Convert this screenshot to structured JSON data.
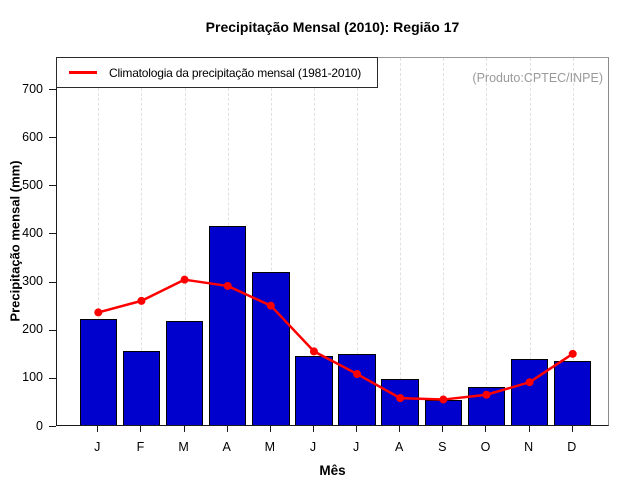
{
  "title": "Precipitação Mensal (2010): Região 17",
  "watermark": {
    "text": "(Produto:CPTEC/INPE)",
    "color": "#9a9a9a"
  },
  "legend": {
    "label": "Climatologia da precipitação mensal (1981-2010)",
    "line_color": "#ff0000",
    "position": "top-left"
  },
  "chart_data": {
    "type": "bar",
    "title": "Precipitação Mensal (2010): Região 17",
    "xlabel": "Mês",
    "ylabel": "Precipitação mensal (mm)",
    "categories": [
      "J",
      "F",
      "M",
      "A",
      "M",
      "J",
      "J",
      "A",
      "S",
      "O",
      "N",
      "D"
    ],
    "series": [
      {
        "name": "Precipitação mensal 2010",
        "type": "bar",
        "color": "#0101cd",
        "values": [
          220,
          154,
          216,
          413,
          318,
          144,
          147,
          95,
          52,
          78,
          138,
          134
        ]
      },
      {
        "name": "Climatologia da precipitação mensal (1981-2010)",
        "type": "line",
        "color": "#ff0000",
        "values": [
          238,
          262,
          306,
          293,
          252,
          157,
          110,
          60,
          57,
          67,
          93,
          152
        ]
      }
    ],
    "ylim": [
      0,
      766
    ],
    "yticks": [
      0,
      100,
      200,
      300,
      400,
      500,
      600,
      700
    ],
    "grid": "vertical-dashed",
    "grid_color": "#e0e0e0",
    "legend_position": "top-left"
  }
}
